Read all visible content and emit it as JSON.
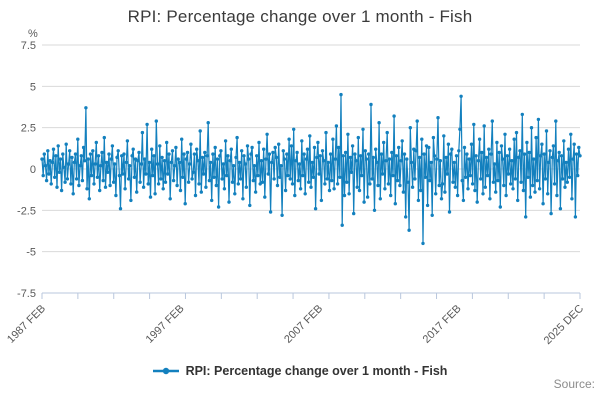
{
  "title": "RPI: Percentage change over 1 month - Fish",
  "y_axis_unit": "%",
  "legend": {
    "label": "RPI: Percentage change over 1 month - Fish"
  },
  "source_label": "Source:",
  "colors": {
    "series_blue": "#1380be",
    "gridline": "#d9d9d9",
    "axis": "#b9c7dd"
  },
  "chart_data": {
    "type": "line",
    "title": "RPI: Percentage change over 1 month - Fish",
    "xlabel": "",
    "ylabel": "%",
    "ylim": [
      -7.5,
      7.5
    ],
    "yticks": [
      7.5,
      5,
      2.5,
      0,
      -2.5,
      -5,
      -7.5
    ],
    "grid": "horizontal",
    "legend_position": "bottom",
    "x_start": "1987 FEB",
    "x_end": "2025 DEC",
    "minor_tick_count": 16,
    "x_axis_labels": [
      {
        "label": "1987 FEB",
        "month": 0
      },
      {
        "label": "1997 FEB",
        "month": 120
      },
      {
        "label": "2007 FEB",
        "month": 240
      },
      {
        "label": "2017 FEB",
        "month": 360
      },
      {
        "label": "2025 DEC",
        "month": 466
      }
    ],
    "series": [
      {
        "name": "RPI: Percentage change over 1 month - Fish",
        "color": "#1380be",
        "marker": "circle",
        "frequency": "monthly",
        "values": [
          0.6,
          -0.4,
          0.9,
          0.2,
          -0.7,
          1.1,
          -0.3,
          0.5,
          -0.9,
          0.4,
          1.2,
          -0.5,
          0.8,
          -1.1,
          1.4,
          -0.2,
          0.6,
          -1.3,
          0.9,
          0.1,
          -0.8,
          1.5,
          -0.6,
          0.3,
          1.1,
          -0.9,
          0.7,
          -1.5,
          0.4,
          0.9,
          -0.6,
          1.8,
          -1.0,
          0.2,
          0.8,
          -0.7,
          1.3,
          0.5,
          3.7,
          -1.2,
          0.6,
          -1.8,
          0.9,
          -0.4,
          1.1,
          -0.9,
          0.3,
          1.6,
          -0.5,
          0.8,
          -1.3,
          0.2,
          1.0,
          -0.7,
          1.9,
          -1.1,
          0.4,
          -0.2,
          0.9,
          -1.0,
          0.6,
          1.4,
          -0.8,
          0.3,
          -1.6,
          0.7,
          1.1,
          -0.4,
          -2.4,
          0.8,
          -0.3,
          0.9,
          -1.2,
          0.4,
          1.7,
          -0.6,
          0.2,
          -1.9,
          0.8,
          1.2,
          -0.5,
          0.6,
          -1.4,
          0.5,
          1.0,
          -0.8,
          0.3,
          2.2,
          -1.1,
          0.6,
          -0.3,
          2.7,
          -0.9,
          0.4,
          -1.7,
          1.2,
          -0.4,
          0.8,
          -1.5,
          2.9,
          0.3,
          -0.9,
          1.4,
          -0.6,
          0.7,
          -1.2,
          0.5,
          -0.8,
          1.6,
          -0.3,
          0.9,
          -1.8,
          0.4,
          1.1,
          -0.7,
          0.2,
          1.3,
          -1.0,
          0.6,
          0.4,
          -1.3,
          1.8,
          -0.5,
          0.9,
          -2.1,
          0.6,
          1.0,
          -0.8,
          0.3,
          1.5,
          -0.6,
          -0.2,
          0.9,
          -1.6,
          1.2,
          0.5,
          -0.9,
          2.3,
          -1.4,
          0.7,
          -0.3,
          1.0,
          -1.1,
          0.8,
          2.8,
          -0.7,
          0.4,
          -1.9,
          0.9,
          -0.5,
          1.3,
          -1.0,
          0.6,
          -2.3,
          0.8,
          1.1,
          -0.6,
          0.3,
          -1.2,
          1.7,
          -0.4,
          0.8,
          -2.0,
          0.5,
          1.2,
          -0.8,
          0.2,
          -1.5,
          0.7,
          1.9,
          -0.9,
          0.4,
          -0.6,
          1.1,
          -1.8,
          0.8,
          0.3,
          -1.1,
          1.4,
          0.6,
          -2.2,
          0.9,
          1.3,
          -0.7,
          0.2,
          -1.4,
          0.8,
          -0.4,
          1.6,
          -0.9,
          0.5,
          -0.8,
          1.2,
          -1.7,
          0.6,
          2.1,
          -0.3,
          0.9,
          -2.6,
          0.4,
          1.0,
          -0.6,
          1.3,
          0.7,
          -1.0,
          1.5,
          -0.5,
          0.2,
          -2.8,
          1.1,
          0.6,
          -1.3,
          0.9,
          -0.4,
          1.8,
          -0.6,
          1.4,
          -0.9,
          2.4,
          -1.6,
          0.5,
          1.0,
          -0.7,
          0.3,
          -1.2,
          1.7,
          -0.4,
          0.9,
          -1.5,
          0.6,
          1.2,
          -0.8,
          2.0,
          -1.1,
          0.4,
          -0.5,
          1.3,
          -2.4,
          0.7,
          1.6,
          -0.3,
          0.8,
          -1.9,
          1.1,
          0.5,
          -0.9,
          2.2,
          -0.6,
          0.4,
          -1.3,
          0.9,
          -0.7,
          1.8,
          -1.2,
          0.6,
          2.6,
          -0.9,
          1.3,
          -0.5,
          4.5,
          -3.4,
          0.8,
          -1.6,
          1.0,
          -0.8,
          2.1,
          -1.5,
          0.7,
          -0.2,
          1.4,
          -2.7,
          0.9,
          0.5,
          -1.1,
          1.9,
          -1.3,
          0.8,
          -0.4,
          2.4,
          -2.0,
          1.1,
          0.6,
          -1.7,
          0.9,
          -0.9,
          3.9,
          -0.6,
          0.7,
          -2.5,
          1.2,
          0.4,
          -1.0,
          2.8,
          -1.8,
          0.9,
          -0.3,
          1.6,
          -1.2,
          0.5,
          2.2,
          -0.9,
          0.6,
          -1.6,
          1.0,
          -0.4,
          3.2,
          -2.1,
          0.8,
          -0.7,
          1.3,
          -1.0,
          0.5,
          1.7,
          -1.4,
          0.9,
          -2.9,
          0.6,
          -0.8,
          -3.7,
          2.5,
          0.4,
          -1.1,
          1.2,
          -0.6,
          1.1,
          2.9,
          -1.9,
          0.7,
          -1.3,
          1.8,
          -4.5,
          0.9,
          -0.5,
          1.4,
          -2.2,
          1.3,
          -0.7,
          0.4,
          -2.8,
          1.9,
          0.8,
          -1.5,
          0.6,
          3.1,
          -1.0,
          0.5,
          -1.8,
          -0.9,
          2.0,
          -1.4,
          0.7,
          -0.3,
          1.5,
          -2.6,
          0.9,
          1.2,
          -0.8,
          0.4,
          -1.1,
          0.8,
          -1.6,
          1.1,
          2.4,
          4.4,
          -0.7,
          -1.9,
          1.3,
          -0.5,
          0.9,
          -1.2,
          0.6,
          -0.4,
          1.5,
          -0.9,
          2.7,
          -1.3,
          0.8,
          -2.0,
          0.5,
          1.8,
          -0.6,
          1.0,
          -1.5,
          2.6,
          -1.1,
          0.7,
          -0.4,
          1.2,
          -1.8,
          0.9,
          2.9,
          -0.8,
          0.3,
          -1.4,
          1.6,
          -0.7,
          1.0,
          -2.3,
          1.4,
          0.6,
          -1.0,
          2.1,
          -1.6,
          0.8,
          -0.3,
          1.2,
          -0.9,
          0.5,
          -1.2,
          1.8,
          -0.6,
          2.2,
          -1.9,
          0.7,
          1.1,
          -0.8,
          3.3,
          -1.3,
          0.9,
          -2.9,
          1.6,
          -0.5,
          1.0,
          -1.7,
          2.5,
          -1.0,
          0.6,
          -1.4,
          1.9,
          -0.7,
          3.0,
          -1.2,
          0.8,
          1.5,
          -2.1,
          0.9,
          -0.6,
          2.3,
          -1.5,
          0.4,
          1.1,
          -2.7,
          0.7,
          1.4,
          -0.9,
          2.9,
          -1.6,
          0.5,
          1.0,
          -2.4,
          0.8,
          -0.6,
          1.7,
          -1.1,
          0.4,
          -0.8,
          1.2,
          -0.5,
          2.1,
          -1.8,
          0.6,
          1.5,
          -2.9,
          0.9,
          -0.4,
          1.3,
          0.8
        ]
      }
    ]
  }
}
